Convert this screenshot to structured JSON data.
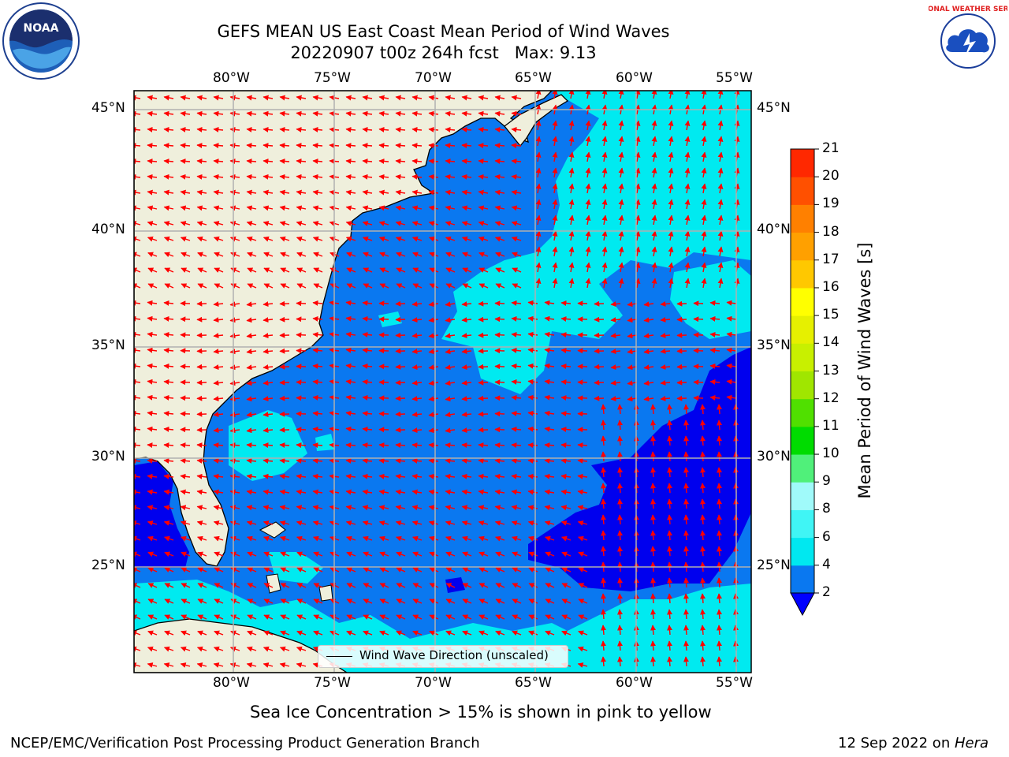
{
  "title": {
    "line1": "GEFS MEAN US East Coast Mean Period of Wind Waves",
    "line2": "20220907 t00z 264h fcst   Max: 9.13"
  },
  "logos": {
    "noaa_text": "NOAA",
    "nws_text": "NATIONAL WEATHER SERVICE"
  },
  "axes": {
    "lon_labels": [
      "80°W",
      "75°W",
      "70°W",
      "65°W",
      "60°W",
      "55°W"
    ],
    "lat_labels": [
      "45°N",
      "40°N",
      "35°N",
      "30°N",
      "25°N"
    ]
  },
  "legend": {
    "label": "Wind Wave Direction (unscaled)"
  },
  "colorbar": {
    "label": "Mean Period of Wind Waves [s]",
    "ticks": [
      "2",
      "4",
      "6",
      "8",
      "9",
      "10",
      "11",
      "12",
      "13",
      "14",
      "15",
      "16",
      "17",
      "18",
      "19",
      "20",
      "21"
    ],
    "colors": [
      "#0a78f0",
      "#00e8f0",
      "#40f5f5",
      "#a0fafa",
      "#50f07a",
      "#00dc00",
      "#50e000",
      "#a0e600",
      "#c8f000",
      "#e6f000",
      "#ffff00",
      "#ffc800",
      "#ffa000",
      "#ff8000",
      "#ff5000",
      "#ff2800"
    ],
    "extend_color": "#0000ff"
  },
  "colors": {
    "land": "#efefdc",
    "ocean_main": "#0a78f0",
    "ocean_light": "#00eaf0",
    "ocean_deep": "#0000ee",
    "arrow": "#ff0000",
    "grid": "#b0b0b0"
  },
  "footer": {
    "ice_note": "Sea Ice Concentration > 15% is shown in pink to yellow",
    "branch": "NCEP/EMC/Verification Post Processing Product Generation Branch",
    "date": "12 Sep 2022 on ",
    "host": "Hera"
  }
}
